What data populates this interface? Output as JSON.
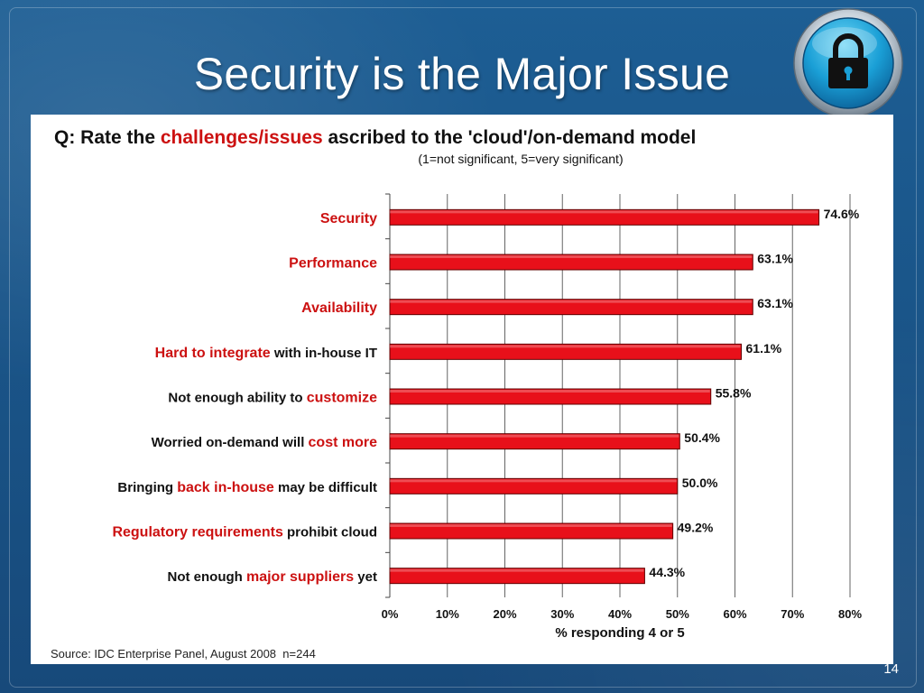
{
  "slide": {
    "title": "Security is the Major Issue",
    "page_number": "14",
    "lock_icon": "padlock-icon"
  },
  "chart": {
    "question_prefix": "Q: Rate the ",
    "question_highlight": "challenges/issues",
    "question_suffix": " ascribed to the 'cloud'/on-demand model",
    "subtitle": "(1=not significant, 5=very significant)",
    "source_prefix": "Source: IDC Enterprise Panel, August 2008",
    "source_n": "n=244"
  },
  "chart_data": {
    "type": "bar",
    "orientation": "horizontal",
    "xlabel": "% responding 4 or 5",
    "xlim": [
      0,
      80
    ],
    "xticks": [
      "0%",
      "10%",
      "20%",
      "30%",
      "40%",
      "50%",
      "60%",
      "70%",
      "80%"
    ],
    "categories": [
      {
        "parts": [
          {
            "text": "Security",
            "hl": true
          }
        ]
      },
      {
        "parts": [
          {
            "text": "Performance",
            "hl": true
          }
        ]
      },
      {
        "parts": [
          {
            "text": "Availability",
            "hl": true
          }
        ]
      },
      {
        "parts": [
          {
            "text": "Hard to integrate",
            "hl": true
          },
          {
            "text": " with in-house IT",
            "hl": false
          }
        ]
      },
      {
        "parts": [
          {
            "text": "Not enough ability to ",
            "hl": false
          },
          {
            "text": "customize",
            "hl": true
          }
        ]
      },
      {
        "parts": [
          {
            "text": "Worried on-demand will ",
            "hl": false
          },
          {
            "text": "cost more",
            "hl": true
          }
        ]
      },
      {
        "parts": [
          {
            "text": "Bringing ",
            "hl": false
          },
          {
            "text": "back in-house",
            "hl": true
          },
          {
            "text": " may be difficult",
            "hl": false
          }
        ]
      },
      {
        "parts": [
          {
            "text": "Regulatory requirements",
            "hl": true
          },
          {
            "text": " prohibit cloud",
            "hl": false
          }
        ]
      },
      {
        "parts": [
          {
            "text": "Not enough ",
            "hl": false
          },
          {
            "text": "major suppliers",
            "hl": true
          },
          {
            "text": " yet",
            "hl": false
          }
        ]
      }
    ],
    "values": [
      74.6,
      63.1,
      63.1,
      61.1,
      55.8,
      50.4,
      50.0,
      49.2,
      44.3
    ],
    "value_labels": [
      "74.6%",
      "63.1%",
      "63.1%",
      "61.1%",
      "55.8%",
      "50.4%",
      "50.0%",
      "49.2%",
      "44.3%"
    ],
    "grid": true,
    "legend": "none",
    "colors": {
      "bar": "#e8101a",
      "bar_edge": "#600000",
      "highlight_text": "#cc1111",
      "text": "#111111",
      "grid": "#666666"
    }
  }
}
